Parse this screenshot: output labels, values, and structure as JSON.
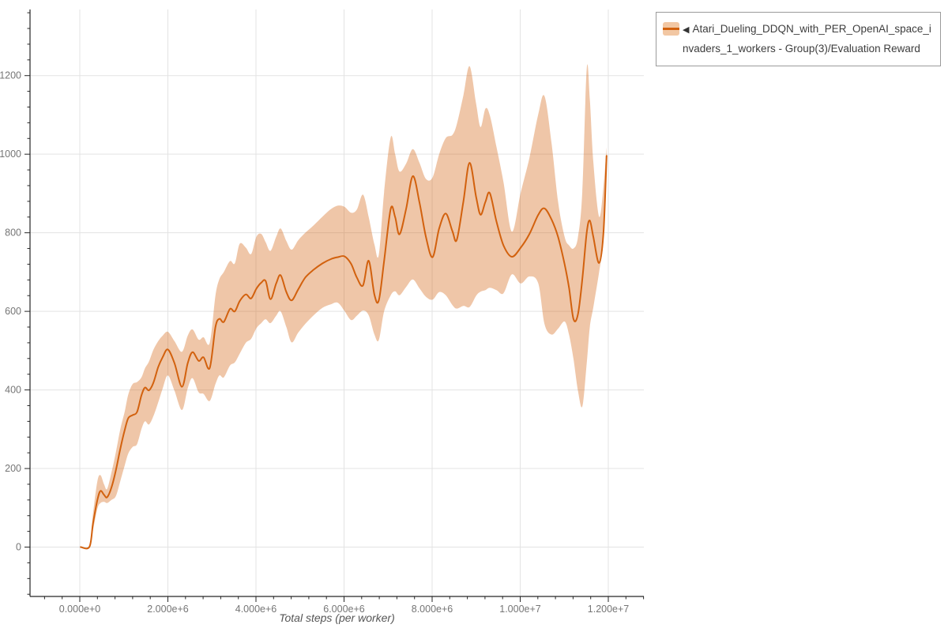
{
  "legend": {
    "arrow": "◀",
    "label": "Atari_Dueling_DDQN_with_PER_OpenAI_space_invaders_1_workers - Group(3)/Evaluation Reward"
  },
  "chart_data": {
    "type": "line",
    "title": "",
    "xlabel": "Total steps (per worker)",
    "ylabel": "",
    "grid": true,
    "legend_position": "top-right",
    "xlim": [
      -1130000,
      12807000
    ],
    "ylim": [
      -125.6,
      1368.3
    ],
    "x_ticks": [
      {
        "value": 0,
        "label": "0.000e+0"
      },
      {
        "value": 2000000,
        "label": "2.000e+6"
      },
      {
        "value": 4000000,
        "label": "4.000e+6"
      },
      {
        "value": 6000000,
        "label": "6.000e+6"
      },
      {
        "value": 8000000,
        "label": "8.000e+6"
      },
      {
        "value": 10000000,
        "label": "1.000e+7"
      },
      {
        "value": 12000000,
        "label": "1.200e+7"
      }
    ],
    "y_ticks": [
      {
        "value": 0,
        "label": "0"
      },
      {
        "value": 200,
        "label": "200"
      },
      {
        "value": 400,
        "label": "400"
      },
      {
        "value": 600,
        "label": "600"
      },
      {
        "value": 800,
        "label": "800"
      },
      {
        "value": 1000,
        "label": "1000"
      },
      {
        "value": 1200,
        "label": "1200"
      }
    ],
    "x_minor_step": 400000,
    "y_minor_step": 40,
    "colors": {
      "line": "#d2610e",
      "band": "rgba(210,97,15,0.36)",
      "grid": "#e3e3e3",
      "axis": "#262626",
      "tick_label": "#757575"
    },
    "series": [
      {
        "name": "Atari_Dueling_DDQN_with_PER_OpenAI_space_invaders_1_workers - Group(3)/Evaluation Reward",
        "x_e6": [
          0.02,
          0.22,
          0.3,
          0.4,
          0.47,
          0.55,
          0.62,
          0.72,
          0.82,
          0.92,
          1.02,
          1.1,
          1.2,
          1.3,
          1.4,
          1.48,
          1.57,
          1.67,
          1.78,
          1.88,
          2.0,
          2.15,
          2.32,
          2.45,
          2.56,
          2.7,
          2.81,
          2.95,
          3.08,
          3.17,
          3.27,
          3.41,
          3.52,
          3.63,
          3.77,
          3.89,
          4.01,
          4.12,
          4.22,
          4.33,
          4.46,
          4.56,
          4.69,
          4.81,
          4.96,
          5.12,
          5.31,
          5.51,
          5.7,
          5.86,
          6.01,
          6.16,
          6.29,
          6.43,
          6.56,
          6.69,
          6.79,
          6.91,
          7.06,
          7.16,
          7.26,
          7.41,
          7.56,
          7.71,
          7.86,
          8.01,
          8.16,
          8.31,
          8.46,
          8.56,
          8.71,
          8.85,
          9.0,
          9.1,
          9.21,
          9.31,
          9.46,
          9.62,
          9.81,
          10.01,
          10.21,
          10.41,
          10.55,
          10.71,
          10.86,
          11.01,
          11.11,
          11.21,
          11.31,
          11.41,
          11.51,
          11.58,
          11.66,
          11.79,
          11.89,
          11.96
        ],
        "mean": [
          0,
          1,
          60,
          120,
          143,
          133,
          127,
          152,
          196,
          250,
          298,
          328,
          336,
          344,
          386,
          406,
          399,
          418,
          458,
          483,
          503,
          468,
          408,
          468,
          496,
          474,
          483,
          456,
          560,
          581,
          573,
          606,
          600,
          626,
          643,
          633,
          658,
          673,
          677,
          631,
          671,
          692,
          649,
          628,
          656,
          686,
          706,
          722,
          733,
          738,
          740,
          721,
          686,
          666,
          729,
          642,
          628,
          728,
          861,
          840,
          796,
          861,
          944,
          879,
          789,
          738,
          811,
          849,
          804,
          782,
          880,
          978,
          890,
          846,
          879,
          901,
          829,
          768,
          739,
          762,
          797,
          846,
          862,
          834,
          789,
          719,
          659,
          580,
          592,
          682,
          801,
          831,
          789,
          723,
          801,
          996
        ],
        "low": [
          0,
          0,
          42,
          98,
          112,
          115,
          112,
          120,
          130,
          168,
          208,
          238,
          255,
          262,
          300,
          320,
          312,
          333,
          368,
          403,
          437,
          398,
          349,
          404,
          430,
          394,
          390,
          372,
          415,
          437,
          432,
          462,
          470,
          492,
          520,
          530,
          557,
          570,
          580,
          570,
          589,
          600,
          560,
          521,
          546,
          568,
          590,
          609,
          618,
          622,
          601,
          578,
          589,
          602,
          590,
          541,
          527,
          600,
          641,
          651,
          641,
          662,
          681,
          659,
          637,
          630,
          649,
          641,
          616,
          607,
          614,
          611,
          640,
          650,
          654,
          660,
          654,
          646,
          694,
          671,
          689,
          671,
          568,
          541,
          556,
          574,
          540,
          478,
          399,
          358,
          468,
          560,
          611,
          699,
          781,
          958
        ],
        "high": [
          0,
          2,
          85,
          168,
          183,
          160,
          148,
          190,
          242,
          300,
          345,
          388,
          415,
          420,
          432,
          455,
          472,
          502,
          524,
          538,
          548,
          524,
          497,
          538,
          554,
          528,
          534,
          520,
          640,
          682,
          700,
          728,
          722,
          772,
          762,
          746,
          790,
          797,
          776,
          754,
          790,
          811,
          779,
          757,
          781,
          800,
          819,
          841,
          860,
          869,
          866,
          851,
          859,
          897,
          840,
          770,
          744,
          903,
          1043,
          1000,
          956,
          976,
          1013,
          979,
          937,
          941,
          1000,
          1041,
          1049,
          1076,
          1150,
          1224,
          1127,
          1069,
          1116,
          1099,
          1019,
          929,
          803,
          902,
          991,
          1102,
          1148,
          1029,
          878,
          789,
          768,
          760,
          788,
          905,
          1218,
          1140,
          979,
          841,
          918,
          1018
        ]
      }
    ]
  }
}
